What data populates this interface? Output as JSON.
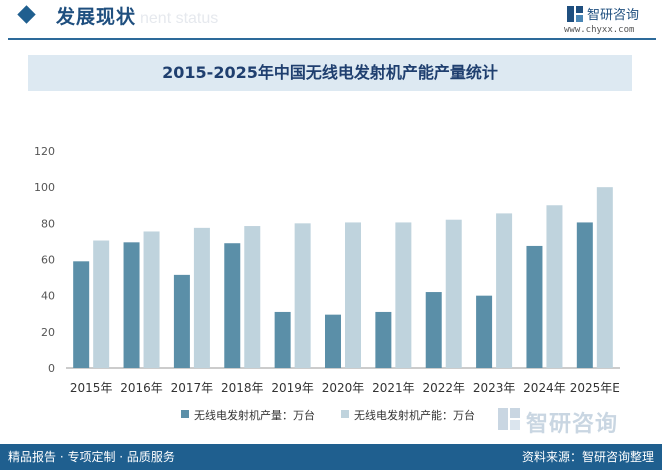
{
  "header": {
    "section_title": "发展现状",
    "section_subtitle": "nent status",
    "logo_name": "智研咨询",
    "logo_url": "www.chyxx.com"
  },
  "chart_data": {
    "type": "bar",
    "title": "2015-2025年中国无线电发射机产能产量统计",
    "categories": [
      "2015年",
      "2016年",
      "2017年",
      "2018年",
      "2019年",
      "2020年",
      "2021年",
      "2022年",
      "2023年",
      "2024年",
      "2025年E"
    ],
    "series": [
      {
        "name": "无线电发射机产量：万台",
        "color": "#5b8fa8",
        "values": [
          59,
          69.5,
          51.5,
          69,
          31,
          29.5,
          31,
          42,
          40,
          67.5,
          80.5
        ]
      },
      {
        "name": "无线电发射机产能：万台",
        "color": "#bfd3dd",
        "values": [
          70.5,
          75.5,
          77.5,
          78.5,
          80,
          80.5,
          80.5,
          82,
          85.5,
          90,
          100
        ]
      }
    ],
    "y_ticks": [
      "0",
      "20",
      "40",
      "60",
      "80",
      "100",
      "120"
    ],
    "ylim": [
      0,
      120
    ],
    "grid": false,
    "legend_position": "bottom"
  },
  "watermark_text": "智研咨询",
  "footer": {
    "left": "精品报告 · 专项定制 · 品质服务",
    "right": "资料来源：智研咨询整理"
  }
}
